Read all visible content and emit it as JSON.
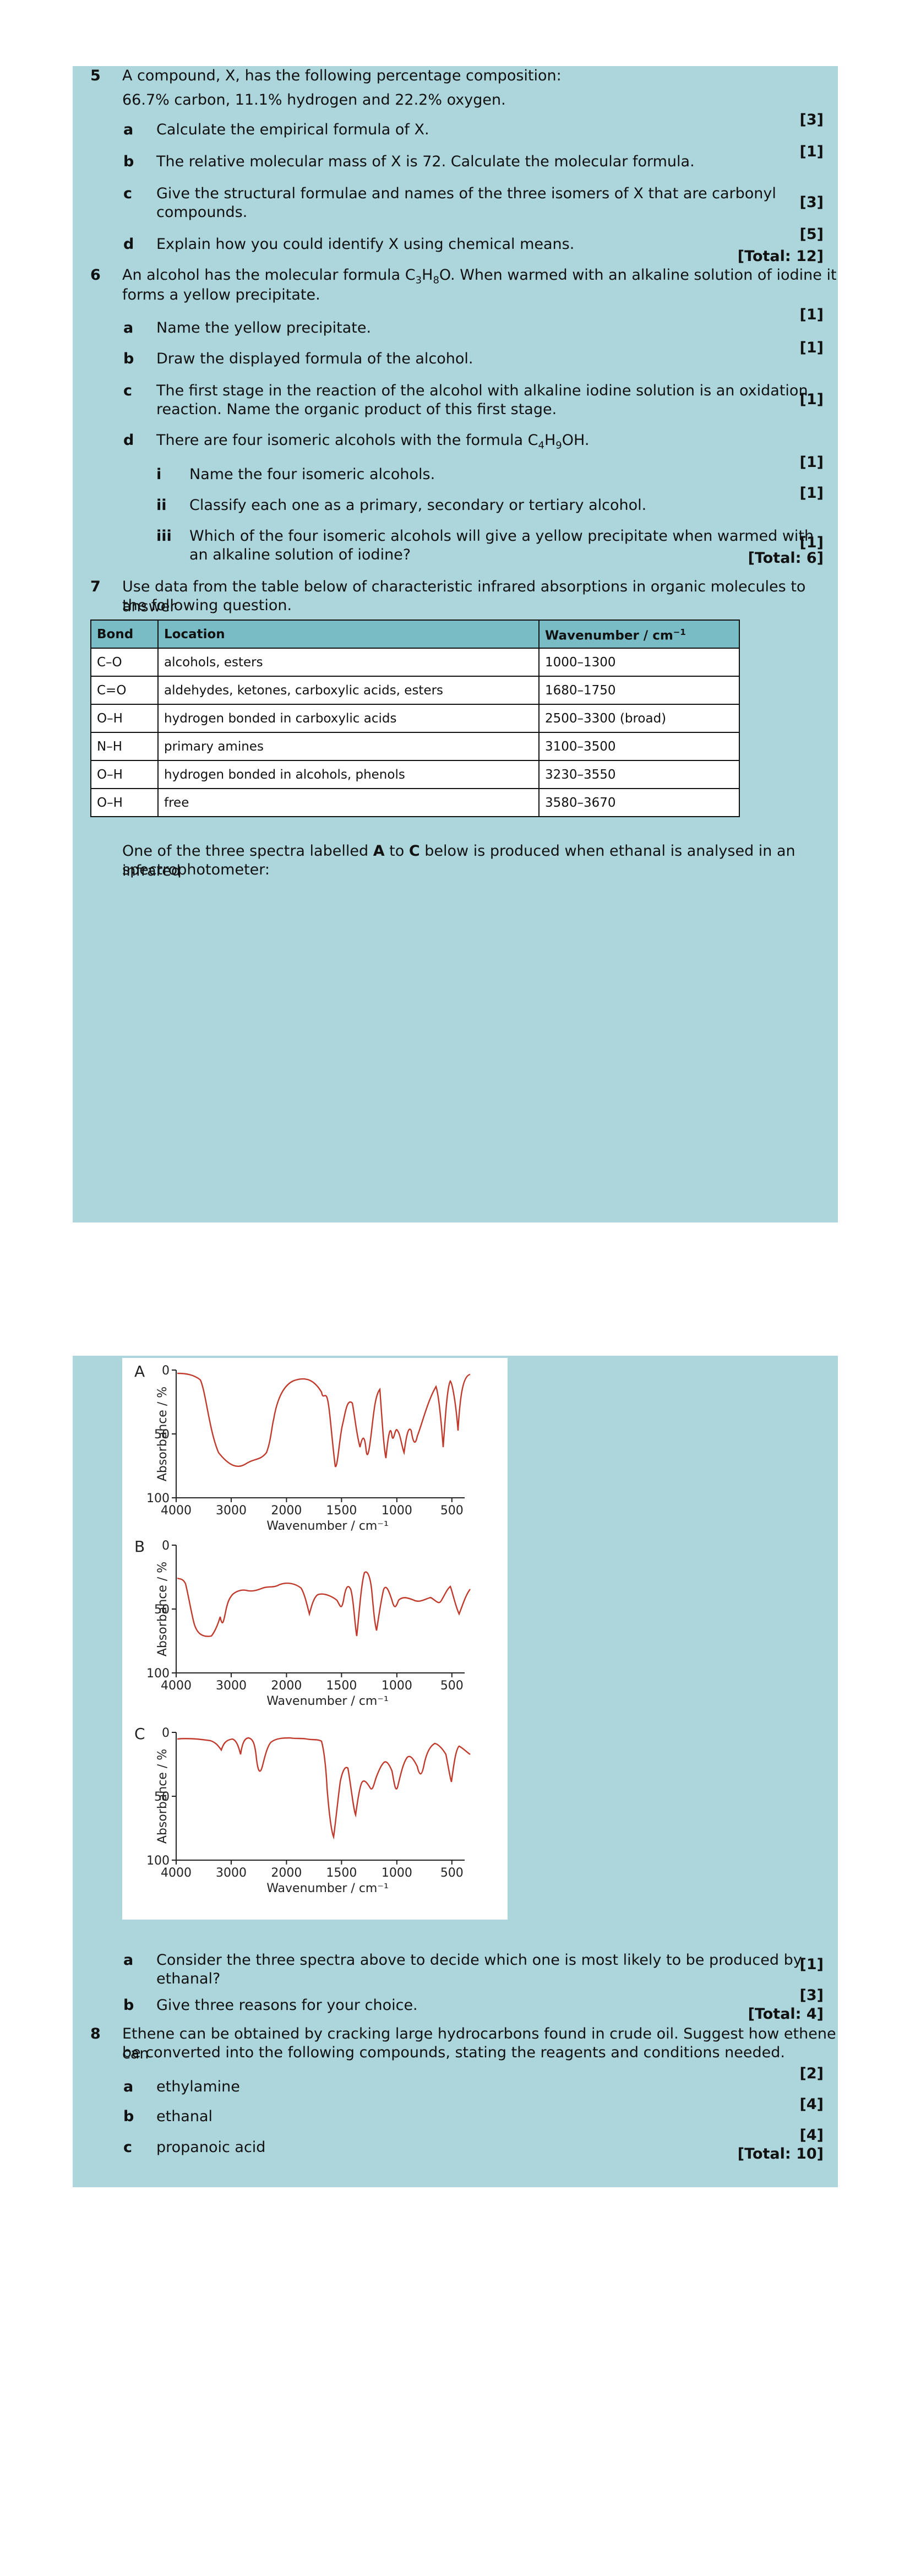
{
  "q5": {
    "num": "5",
    "stem1": "A compound, X, has the following percentage composition:",
    "stem2": "66.7% carbon, 11.1% hydrogen and 22.2% oxygen.",
    "parts": [
      {
        "label": "a",
        "text": "Calculate the empirical formula of X.",
        "mark": "[3]"
      },
      {
        "label": "b",
        "text": "The relative molecular mass of X is 72. Calculate the molecular formula.",
        "mark": "[1]"
      },
      {
        "label": "c",
        "text1": "Give the structural formulae and names of the three isomers of X that are carbonyl",
        "text2": "compounds.",
        "mark": "[3]"
      },
      {
        "label": "d",
        "text": "Explain how you could identify X using chemical means.",
        "mark": "[5]"
      }
    ],
    "total": "[Total: 12]"
  },
  "q6": {
    "num": "6",
    "stem_a": "An alcohol has the molecular formula C",
    "stem_s1": "3",
    "stem_b": "H",
    "stem_s2": "8",
    "stem_c": "O. When warmed with an alkaline solution of iodine it",
    "stem2": "forms a yellow precipitate.",
    "parts": [
      {
        "label": "a",
        "text": "Name the yellow precipitate.",
        "mark": "[1]"
      },
      {
        "label": "b",
        "text": "Draw the displayed formula of the alcohol.",
        "mark": "[1]"
      },
      {
        "label": "c",
        "text1": "The first stage in the reaction of the alcohol with alkaline iodine solution is an oxidation",
        "text2": "reaction. Name the organic product of this first stage.",
        "mark": "[1]"
      }
    ],
    "d": {
      "label": "d",
      "text_a": "There are four isomeric alcohols with the formula C",
      "s1": "4",
      "text_b": "H",
      "s2": "9",
      "text_c": "OH."
    },
    "roman": [
      {
        "label": "i",
        "text": "Name the four isomeric alcohols.",
        "mark": "[1]"
      },
      {
        "label": "ii",
        "text": "Classify each one as a primary, secondary or tertiary alcohol.",
        "mark": "[1]"
      },
      {
        "label": "iii",
        "text1": "Which of the four isomeric alcohols will give a yellow precipitate when warmed with",
        "text2": "an alkaline solution of iodine?",
        "mark": "[1]"
      }
    ],
    "total": "[Total: 6]"
  },
  "q7": {
    "num": "7",
    "stem1": "Use data from the table below of characteristic infrared absorptions in organic molecules to answer",
    "stem2": "the following question.",
    "table": {
      "headers": [
        "Bond",
        "Location",
        "Wavenumber / cm"
      ],
      "header_sup": "−1",
      "rows": [
        [
          "C–O",
          "alcohols, esters",
          "1000–1300"
        ],
        [
          "C=O",
          "aldehydes, ketones, carboxylic acids, esters",
          "1680–1750"
        ],
        [
          "O–H",
          "hydrogen bonded in carboxylic acids",
          "2500–3300 (broad)"
        ],
        [
          "N–H",
          "primary amines",
          "3100–3500"
        ],
        [
          "O–H",
          "hydrogen bonded in alcohols, phenols",
          "3230–3550"
        ],
        [
          "O–H",
          "free",
          "3580–3670"
        ]
      ]
    },
    "after_a": "One of the three spectra labelled ",
    "after_A": "A",
    "after_to": " to ",
    "after_C": "C",
    "after_b": " below is produced when ethanal is analysed in an infrared",
    "after2": "spectrophotometer:",
    "spectra": {
      "ylabel": "Absorbance / %",
      "xlabel": "Wavenumber / cm⁻¹",
      "yticks": [
        "0",
        "50",
        "100"
      ],
      "xticks": [
        "4000",
        "3000",
        "2000",
        "1500",
        "1000",
        "500"
      ],
      "labels": [
        "A",
        "B",
        "C"
      ]
    },
    "parts": [
      {
        "label": "a",
        "text1": "Consider the three spectra above to decide which one is most likely to be produced by",
        "text2": "ethanal?",
        "mark": "[1]"
      },
      {
        "label": "b",
        "text": "Give three reasons for your choice.",
        "mark": "[3]"
      }
    ],
    "total": "[Total: 4]"
  },
  "q8": {
    "num": "8",
    "stem1": "Ethene can be obtained by cracking large hydrocarbons found in crude oil. Suggest how ethene can",
    "stem2": "be converted into the following compounds, stating the reagents and conditions needed.",
    "parts": [
      {
        "label": "a",
        "text": "ethylamine",
        "mark": "[2]"
      },
      {
        "label": "b",
        "text": "ethanal",
        "mark": "[4]"
      },
      {
        "label": "c",
        "text": "propanoic acid",
        "mark": "[4]"
      }
    ],
    "total": "[Total: 10]"
  },
  "colors": {
    "panel": "#acd5dc",
    "table_header": "#79bcc6",
    "spectrum_line": "#c0392b"
  }
}
